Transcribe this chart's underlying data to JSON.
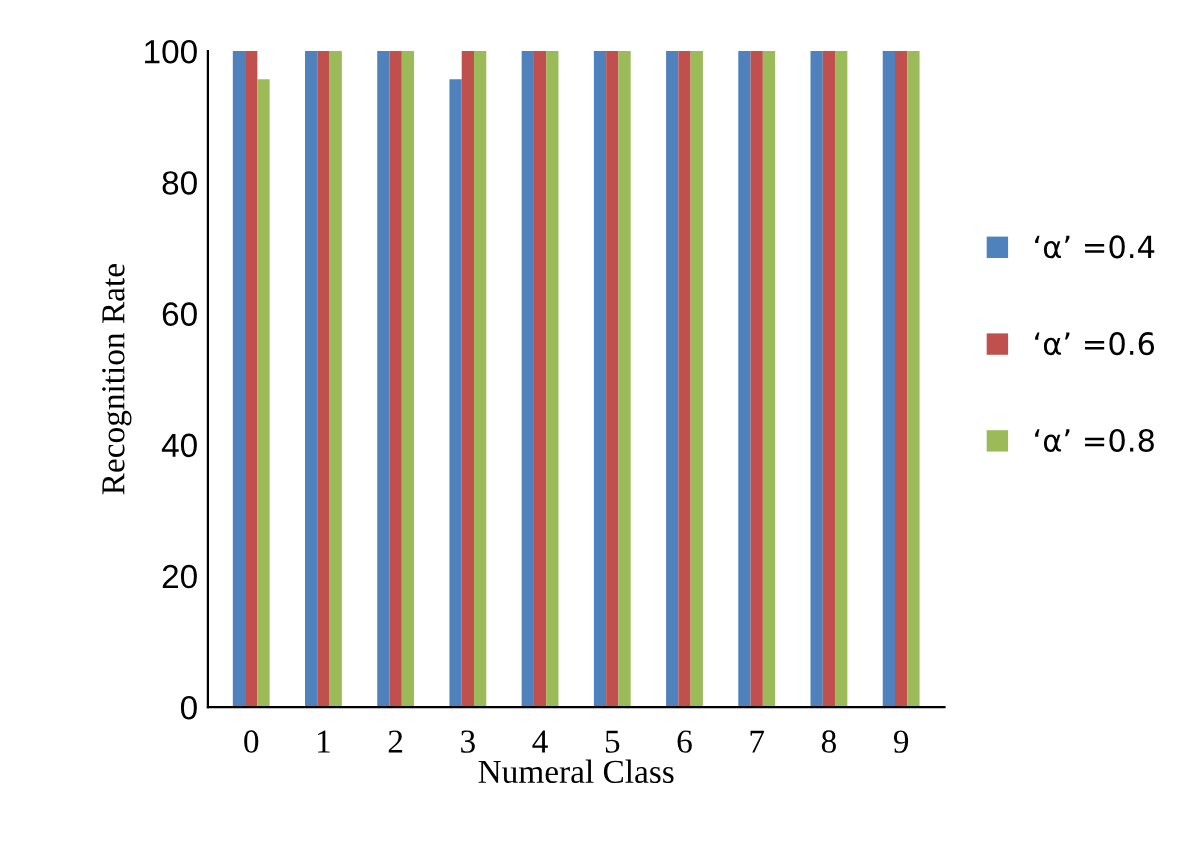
{
  "chart_data": {
    "type": "bar",
    "xlabel": "Numeral Class",
    "ylabel": "Recognition Rate",
    "categories": [
      "0",
      "1",
      "2",
      "3",
      "4",
      "5",
      "6",
      "7",
      "8",
      "9"
    ],
    "series": [
      {
        "name": "‘α’ =0.4",
        "color": "#4f81bd",
        "values": [
          100,
          100,
          100,
          95.7,
          100,
          100,
          100,
          100,
          100,
          100
        ]
      },
      {
        "name": "‘α’ =0.6",
        "color": "#c0504d",
        "values": [
          100,
          100,
          100,
          100,
          100,
          100,
          100,
          100,
          100,
          100
        ]
      },
      {
        "name": "‘α’ =0.8",
        "color": "#9bbb59",
        "values": [
          95.7,
          100,
          100,
          100,
          100,
          100,
          100,
          100,
          100,
          100
        ]
      }
    ],
    "ylim": [
      0,
      100
    ],
    "yticks": [
      0,
      20,
      40,
      60,
      80,
      100
    ],
    "grid": false,
    "legend": "right"
  }
}
